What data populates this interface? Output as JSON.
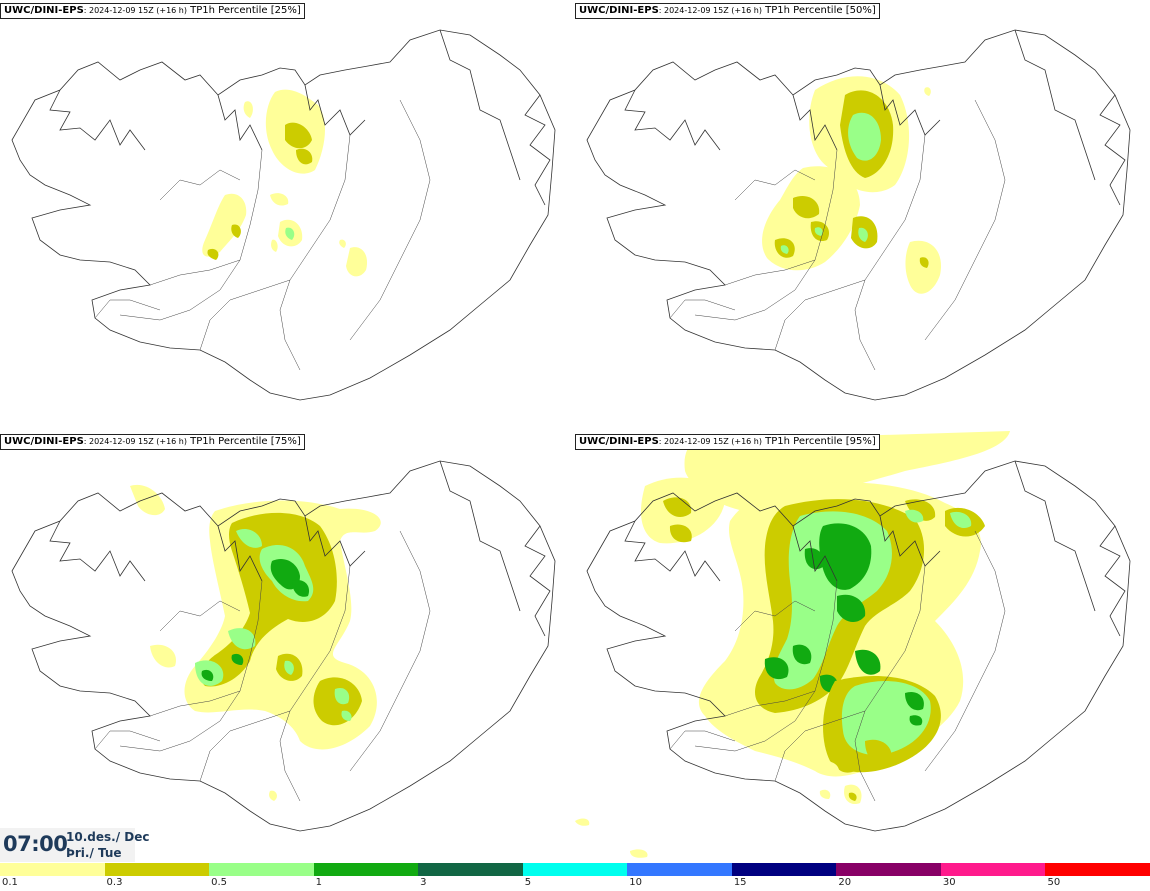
{
  "panels": [
    {
      "model": "UWC/DINI-EPS",
      "run": ": 2024-12-09 15Z (+16 h)",
      "field": " TP1h Percentile [25%]"
    },
    {
      "model": "UWC/DINI-EPS",
      "run": ": 2024-12-09 15Z (+16 h)",
      "field": " TP1h Percentile [50%]"
    },
    {
      "model": "UWC/DINI-EPS",
      "run": ": 2024-12-09 15Z (+16 h)",
      "field": " TP1h Percentile [75%]"
    },
    {
      "model": "UWC/DINI-EPS",
      "run": ": 2024-12-09 15Z (+16 h)",
      "field": " TP1h Percentile [95%]"
    }
  ],
  "valid_time": {
    "time": "07:00",
    "date": "10.des./ Dec",
    "weekday": "Þri./ Tue"
  },
  "legend": {
    "colors": [
      "#ffff99",
      "#cccc00",
      "#99ff88",
      "#11aa11",
      "#116644",
      "#00ffee",
      "#3377ff",
      "#000080",
      "#880066",
      "#ff1a8c",
      "#ff0000"
    ],
    "labels": [
      "0.1",
      "0.3",
      "0.5",
      "1",
      "3",
      "5",
      "10",
      "15",
      "20",
      "30",
      "50"
    ]
  },
  "layer_colors": {
    "light": "#ffff99",
    "olive": "#cccc00",
    "lightgreen": "#99ff88",
    "green": "#11aa11"
  }
}
